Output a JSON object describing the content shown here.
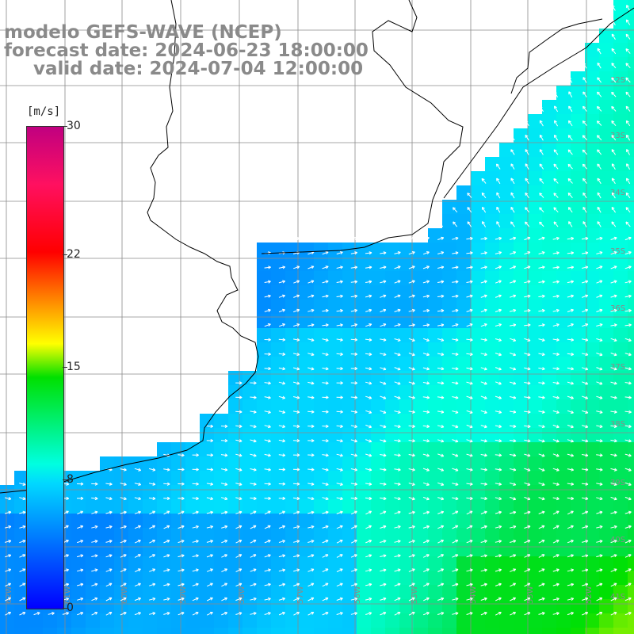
{
  "title": {
    "model": "modelo GEFS-WAVE (NCEP)",
    "forecast": "forecast date: 2024-06-23 18:00:00",
    "valid": "valid date: 2024-07-04 12:00:00"
  },
  "colorbar": {
    "unit": "[m/s]",
    "min": 0,
    "max": 30,
    "ticks": [
      {
        "label": "30",
        "value": 30
      },
      {
        "label": "22",
        "value": 22
      },
      {
        "label": "15",
        "value": 15
      },
      {
        "label": "8",
        "value": 8
      },
      {
        "label": "0",
        "value": 0
      }
    ]
  },
  "colors": {
    "land": "#ffffff",
    "coast": "#000000",
    "grid": "#8a8a8a",
    "arrow": "#ffffff",
    "label": "#8a8a8a"
  },
  "lat_labels": [
    "32S",
    "33S",
    "34S",
    "35S",
    "36S",
    "37S",
    "38S",
    "39S",
    "40S",
    "41S"
  ],
  "lon_labels": [
    "62W",
    "61W",
    "60W",
    "59W",
    "58W",
    "57W",
    "56W",
    "55W",
    "54W",
    "53W",
    "52W"
  ]
}
